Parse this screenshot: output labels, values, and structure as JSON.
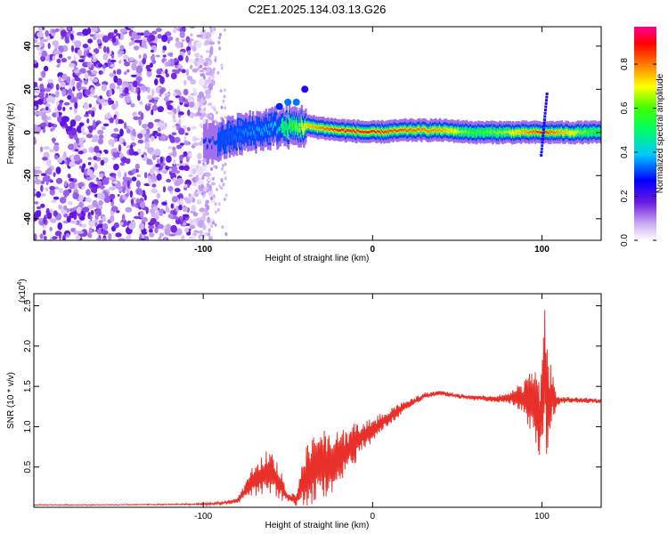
{
  "title": "C2E1.2025.134.03.13.G26",
  "colorbar": {
    "label": "Normalized spectral amplitude",
    "ticks": [
      "0.0",
      "0.2",
      "0.4",
      "0.6",
      "0.8"
    ],
    "tick_values": [
      0.0,
      0.2,
      0.4,
      0.6,
      0.8
    ],
    "range": [
      0,
      0.97
    ]
  },
  "chart_data": [
    {
      "type": "heatmap",
      "name": "spectrogram",
      "xlabel": "Height of straight line (km)",
      "ylabel": "Frequency (Hz)",
      "xlim": [
        -200,
        135
      ],
      "ylim": [
        -50,
        49
      ],
      "xticks": [
        -100,
        0,
        100
      ],
      "xtick_labels": [
        "-100",
        "0",
        "100"
      ],
      "yticks": [
        -40,
        -20,
        0,
        20,
        40
      ],
      "ytick_labels": [
        "-40",
        "-20",
        "0",
        "20",
        "40"
      ],
      "noise_region_km": [
        -200,
        -100
      ],
      "ridge": {
        "description_points_km": [
          -100,
          -80,
          -60,
          -40,
          -20,
          0,
          20,
          40,
          60,
          80,
          100,
          135
        ],
        "frequency_hz": [
          -6,
          -1,
          2,
          3,
          1,
          0,
          1,
          1,
          0,
          0,
          0,
          0
        ],
        "amplitude": [
          0.3,
          0.35,
          0.4,
          0.75,
          0.9,
          0.9,
          0.85,
          0.8,
          0.6,
          0.7,
          0.9,
          0.55
        ]
      },
      "colorscale": "rainbow"
    },
    {
      "type": "line",
      "name": "snr",
      "xlabel": "Height of straight line (km)",
      "ylabel": "SNR (10 * v/v)",
      "y_scale_label": "(x10",
      "y_scale_exp": "4",
      "xlim": [
        -200,
        135
      ],
      "ylim": [
        0,
        2.65
      ],
      "xticks": [
        -100,
        0,
        100
      ],
      "xtick_labels": [
        "-100",
        "0",
        "100"
      ],
      "yticks": [
        0.5,
        1.0,
        1.5,
        2.0,
        2.5
      ],
      "ytick_labels": [
        "0.5",
        "1.0",
        "1.5",
        "2.0",
        "2.5"
      ],
      "series": [
        {
          "name": "SNR",
          "color": "#e8302a",
          "x": [
            -200,
            -150,
            -100,
            -90,
            -80,
            -75,
            -70,
            -65,
            -60,
            -55,
            -50,
            -45,
            -40,
            -35,
            -30,
            -25,
            -20,
            -15,
            -10,
            -5,
            0,
            5,
            10,
            15,
            20,
            25,
            30,
            35,
            40,
            50,
            60,
            70,
            80,
            85,
            90,
            95,
            100,
            102,
            104,
            106,
            108,
            110,
            120,
            135
          ],
          "y": [
            0.03,
            0.03,
            0.04,
            0.05,
            0.08,
            0.2,
            0.35,
            0.4,
            0.45,
            0.3,
            0.12,
            0.1,
            0.35,
            0.5,
            0.55,
            0.5,
            0.6,
            0.7,
            0.8,
            0.9,
            0.95,
            1.05,
            1.12,
            1.2,
            1.27,
            1.32,
            1.38,
            1.4,
            1.42,
            1.38,
            1.36,
            1.35,
            1.35,
            1.36,
            1.35,
            1.3,
            1.1,
            1.6,
            1.2,
            1.4,
            1.3,
            1.33,
            1.33,
            1.32
          ],
          "oscillation_amplitude": [
            0.0,
            0.0,
            0.01,
            0.02,
            0.03,
            0.1,
            0.2,
            0.28,
            0.3,
            0.22,
            0.05,
            0.08,
            0.35,
            0.45,
            0.45,
            0.4,
            0.35,
            0.3,
            0.25,
            0.2,
            0.15,
            0.12,
            0.1,
            0.08,
            0.06,
            0.05,
            0.04,
            0.03,
            0.03,
            0.03,
            0.03,
            0.04,
            0.06,
            0.15,
            0.25,
            0.45,
            0.6,
            1.0,
            0.7,
            0.4,
            0.15,
            0.05,
            0.03,
            0.03
          ]
        }
      ]
    }
  ]
}
